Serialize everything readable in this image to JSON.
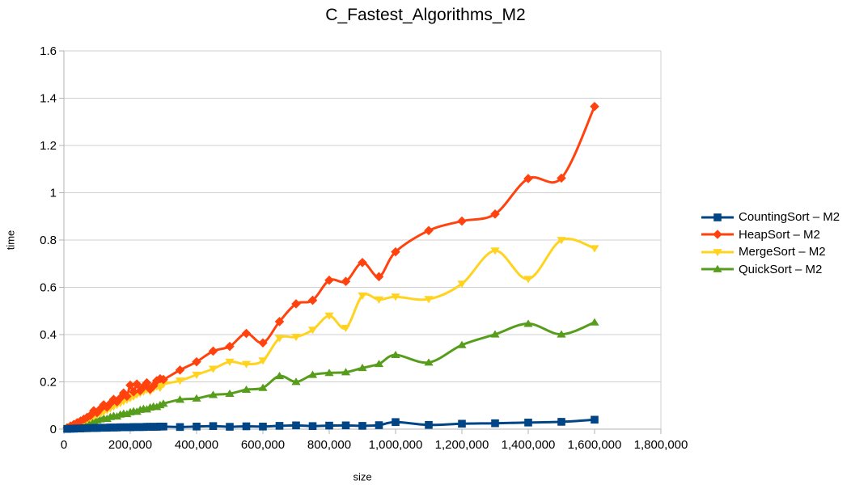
{
  "chart_data": {
    "type": "line",
    "title": "C_Fastest_Algorithms_M2",
    "xlabel": "size",
    "ylabel": "time",
    "xlim": [
      0,
      1800000
    ],
    "ylim": [
      0,
      1.6
    ],
    "grid": "horizontal",
    "smooth_lines": true,
    "legend_position": "right",
    "grid_color": "#cfcfcf",
    "axis_color": "#b3b3b3",
    "text_color": "#000000",
    "background_color": "#ffffff",
    "x_ticks": [
      0,
      200000,
      400000,
      600000,
      800000,
      1000000,
      1200000,
      1400000,
      1600000,
      1800000
    ],
    "x_tick_labels": [
      "0",
      "200,000",
      "400,000",
      "600,000",
      "800,000",
      "1,000,000",
      "1,200,000",
      "1,400,000",
      "1,600,000",
      "1,800,000"
    ],
    "y_ticks": [
      0,
      0.2,
      0.4,
      0.6,
      0.8,
      1.0,
      1.2,
      1.4,
      1.6
    ],
    "y_tick_labels": [
      "0",
      "0.2",
      "0.4",
      "0.6",
      "0.8",
      "1",
      "1.2",
      "1.4",
      "1.6"
    ],
    "x": [
      10000,
      20000,
      30000,
      40000,
      50000,
      60000,
      70000,
      80000,
      90000,
      100000,
      110000,
      120000,
      130000,
      140000,
      150000,
      160000,
      170000,
      180000,
      190000,
      200000,
      210000,
      220000,
      230000,
      240000,
      250000,
      260000,
      270000,
      280000,
      290000,
      300000,
      350000,
      400000,
      450000,
      500000,
      550000,
      600000,
      650000,
      700000,
      750000,
      800000,
      850000,
      900000,
      950000,
      1000000,
      1100000,
      1200000,
      1300000,
      1400000,
      1500000,
      1600000
    ],
    "series": [
      {
        "name": "CountingSort – M2",
        "color": "#004586",
        "marker": "square",
        "values": [
          0.001,
          0.002,
          0.002,
          0.003,
          0.003,
          0.004,
          0.004,
          0.005,
          0.005,
          0.005,
          0.006,
          0.006,
          0.006,
          0.007,
          0.007,
          0.007,
          0.008,
          0.008,
          0.008,
          0.008,
          0.009,
          0.009,
          0.009,
          0.009,
          0.01,
          0.01,
          0.01,
          0.01,
          0.011,
          0.011,
          0.009,
          0.011,
          0.013,
          0.01,
          0.012,
          0.011,
          0.014,
          0.016,
          0.013,
          0.015,
          0.016,
          0.014,
          0.017,
          0.03,
          0.018,
          0.023,
          0.025,
          0.028,
          0.031,
          0.04
        ]
      },
      {
        "name": "HeapSort – M2",
        "color": "#FF420E",
        "marker": "diamond",
        "values": [
          0.006,
          0.013,
          0.02,
          0.027,
          0.034,
          0.042,
          0.05,
          0.058,
          0.078,
          0.07,
          0.086,
          0.103,
          0.093,
          0.109,
          0.126,
          0.116,
          0.132,
          0.153,
          0.139,
          0.186,
          0.158,
          0.191,
          0.163,
          0.179,
          0.196,
          0.169,
          0.183,
          0.205,
          0.213,
          0.21,
          0.25,
          0.285,
          0.33,
          0.35,
          0.405,
          0.365,
          0.455,
          0.53,
          0.545,
          0.63,
          0.625,
          0.705,
          0.645,
          0.75,
          0.84,
          0.88,
          0.91,
          1.06,
          1.062,
          1.365
        ]
      },
      {
        "name": "MergeSort – M2",
        "color": "#FFD320",
        "marker": "triangle-down",
        "values": [
          0.005,
          0.01,
          0.016,
          0.022,
          0.028,
          0.034,
          0.04,
          0.047,
          0.054,
          0.06,
          0.066,
          0.073,
          0.08,
          0.088,
          0.096,
          0.103,
          0.11,
          0.118,
          0.124,
          0.131,
          0.138,
          0.146,
          0.152,
          0.159,
          0.166,
          0.16,
          0.172,
          0.18,
          0.175,
          0.19,
          0.205,
          0.23,
          0.255,
          0.285,
          0.275,
          0.29,
          0.385,
          0.39,
          0.42,
          0.48,
          0.428,
          0.565,
          0.548,
          0.56,
          0.55,
          0.615,
          0.755,
          0.635,
          0.8,
          0.765
        ]
      },
      {
        "name": "QuickSort – M2",
        "color": "#579D1C",
        "marker": "triangle-up",
        "values": [
          0.003,
          0.007,
          0.01,
          0.014,
          0.018,
          0.022,
          0.026,
          0.03,
          0.034,
          0.038,
          0.042,
          0.046,
          0.044,
          0.052,
          0.056,
          0.054,
          0.062,
          0.066,
          0.064,
          0.072,
          0.076,
          0.074,
          0.082,
          0.086,
          0.084,
          0.092,
          0.096,
          0.094,
          0.102,
          0.108,
          0.125,
          0.13,
          0.145,
          0.15,
          0.167,
          0.175,
          0.225,
          0.2,
          0.23,
          0.238,
          0.241,
          0.259,
          0.276,
          0.314,
          0.282,
          0.356,
          0.401,
          0.446,
          0.401,
          0.452
        ]
      }
    ]
  }
}
